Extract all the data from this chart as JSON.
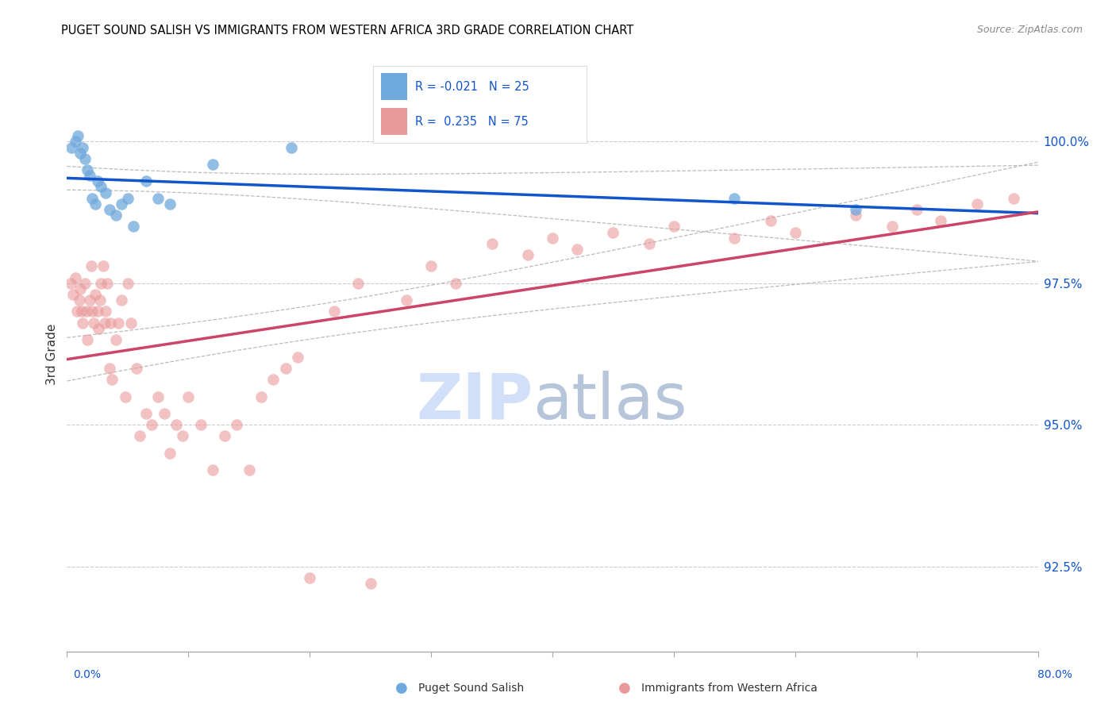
{
  "title": "PUGET SOUND SALISH VS IMMIGRANTS FROM WESTERN AFRICA 3RD GRADE CORRELATION CHART",
  "source": "Source: ZipAtlas.com",
  "ylabel": "3rd Grade",
  "xlim": [
    0.0,
    80.0
  ],
  "ylim": [
    91.0,
    101.5
  ],
  "yticks": [
    92.5,
    95.0,
    97.5,
    100.0
  ],
  "ytick_labels": [
    "92.5%",
    "95.0%",
    "97.5%",
    "100.0%"
  ],
  "blue_color": "#6fa8dc",
  "pink_color": "#ea9999",
  "blue_line_color": "#1155cc",
  "pink_line_color": "#cc4466",
  "title_color": "#000000",
  "source_color": "#888888",
  "grid_color": "#cccccc",
  "watermark_zip_color": "#c9daf8",
  "watermark_atlas_color": "#aabbd4",
  "blue_scatter_x": [
    0.4,
    0.7,
    0.9,
    1.1,
    1.3,
    1.5,
    1.7,
    1.9,
    2.1,
    2.3,
    2.5,
    2.8,
    3.2,
    3.5,
    4.0,
    4.5,
    5.0,
    5.5,
    6.5,
    7.5,
    8.5,
    18.5,
    55.0,
    65.0,
    12.0
  ],
  "blue_scatter_y": [
    99.9,
    100.0,
    100.1,
    99.8,
    99.9,
    99.7,
    99.5,
    99.4,
    99.0,
    98.9,
    99.3,
    99.2,
    99.1,
    98.8,
    98.7,
    98.9,
    99.0,
    98.5,
    99.3,
    99.0,
    98.9,
    99.9,
    99.0,
    98.8,
    99.6
  ],
  "pink_scatter_x": [
    0.3,
    0.5,
    0.7,
    0.8,
    1.0,
    1.1,
    1.2,
    1.3,
    1.5,
    1.6,
    1.7,
    1.9,
    2.0,
    2.1,
    2.2,
    2.3,
    2.5,
    2.6,
    2.7,
    2.8,
    3.0,
    3.1,
    3.2,
    3.3,
    3.5,
    3.6,
    3.7,
    4.0,
    4.2,
    4.5,
    4.8,
    5.0,
    5.3,
    5.7,
    6.0,
    6.5,
    7.0,
    7.5,
    8.0,
    8.5,
    9.0,
    9.5,
    10.0,
    11.0,
    12.0,
    13.0,
    14.0,
    15.0,
    16.0,
    17.0,
    18.0,
    19.0,
    20.0,
    22.0,
    24.0,
    25.0,
    28.0,
    30.0,
    32.0,
    35.0,
    38.0,
    40.0,
    42.0,
    45.0,
    48.0,
    50.0,
    55.0,
    58.0,
    60.0,
    65.0,
    68.0,
    70.0,
    72.0,
    75.0,
    78.0
  ],
  "pink_scatter_y": [
    97.5,
    97.3,
    97.6,
    97.0,
    97.2,
    97.4,
    97.0,
    96.8,
    97.5,
    97.0,
    96.5,
    97.2,
    97.8,
    97.0,
    96.8,
    97.3,
    97.0,
    96.7,
    97.2,
    97.5,
    97.8,
    96.8,
    97.0,
    97.5,
    96.0,
    96.8,
    95.8,
    96.5,
    96.8,
    97.2,
    95.5,
    97.5,
    96.8,
    96.0,
    94.8,
    95.2,
    95.0,
    95.5,
    95.2,
    94.5,
    95.0,
    94.8,
    95.5,
    95.0,
    94.2,
    94.8,
    95.0,
    94.2,
    95.5,
    95.8,
    96.0,
    96.2,
    92.3,
    97.0,
    97.5,
    92.2,
    97.2,
    97.8,
    97.5,
    98.2,
    98.0,
    98.3,
    98.1,
    98.4,
    98.2,
    98.5,
    98.3,
    98.6,
    98.4,
    98.7,
    98.5,
    98.8,
    98.6,
    98.9,
    99.0
  ]
}
